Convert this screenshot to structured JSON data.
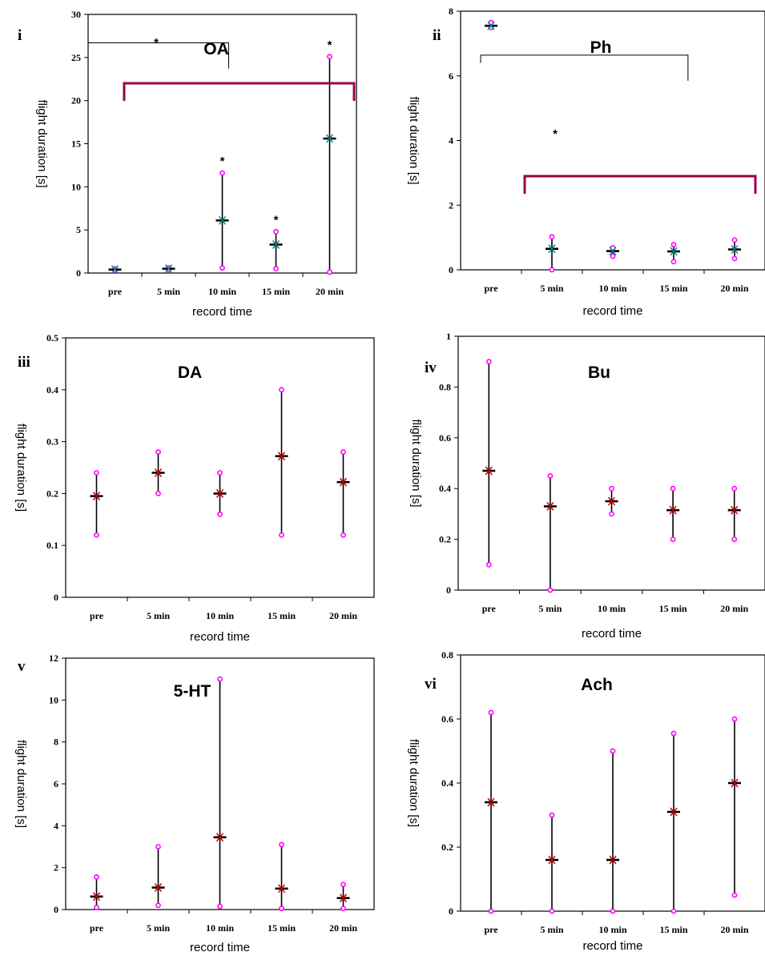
{
  "chart_data": [
    {
      "type": "scatter",
      "panel_label": "i",
      "title": "OA",
      "xlabel": "record time",
      "ylabel": "flight duration [s]",
      "categories": [
        "pre",
        "5 min",
        "10 min",
        "15 min",
        "20 min"
      ],
      "ylim": [
        0,
        30
      ],
      "yticks": [
        "0",
        "5",
        "10",
        "15",
        "20",
        "25",
        "30"
      ],
      "mean": [
        0.4,
        0.5,
        6.1,
        3.3,
        15.6
      ],
      "max": [
        0.5,
        0.6,
        11.6,
        4.8,
        25.1
      ],
      "min": [
        0.3,
        0.4,
        0.6,
        0.5,
        0.1
      ],
      "significance": [
        "",
        "",
        "*",
        "*",
        "*"
      ],
      "bracket_label": "*",
      "mean_color": "#008b8b",
      "point_color": "#ff00ff",
      "bracket_color": "#990044"
    },
    {
      "type": "scatter",
      "panel_label": "ii",
      "title": "Ph",
      "xlabel": "record time",
      "ylabel": "flight duration [s]",
      "categories": [
        "pre",
        "5 min",
        "10 min",
        "15 min",
        "20 min"
      ],
      "ylim": [
        0,
        8
      ],
      "yticks": [
        "0",
        "2",
        "4",
        "6",
        "8"
      ],
      "mean": [
        7.55,
        0.65,
        0.58,
        0.57,
        0.63
      ],
      "max": [
        7.65,
        1.02,
        0.68,
        0.78,
        0.92
      ],
      "min": [
        7.5,
        0.0,
        0.42,
        0.25,
        0.35
      ],
      "significance": [
        "",
        "",
        "",
        "",
        ""
      ],
      "bracket_label": "*",
      "mean_color": "#008b8b",
      "point_color": "#ff00ff",
      "bracket_color": "#990044"
    },
    {
      "type": "scatter",
      "panel_label": "iii",
      "title": "DA",
      "xlabel": "record time",
      "ylabel": "flight duration [s]",
      "categories": [
        "pre",
        "5 min",
        "10 min",
        "15 min",
        "20 min"
      ],
      "ylim": [
        0,
        0.5
      ],
      "yticks": [
        "0",
        "0.1",
        "0.2",
        "0.3",
        "0.4",
        "0.5"
      ],
      "mean": [
        0.195,
        0.24,
        0.2,
        0.272,
        0.222
      ],
      "max": [
        0.24,
        0.28,
        0.24,
        0.4,
        0.28
      ],
      "min": [
        0.12,
        0.2,
        0.16,
        0.12,
        0.12
      ],
      "significance": [
        "",
        "",
        "",
        "",
        ""
      ],
      "bracket_label": "",
      "mean_color": "#cc0000",
      "point_color": "#ff00ff",
      "bracket_color": "#990044"
    },
    {
      "type": "scatter",
      "panel_label": "iv",
      "title": "Bu",
      "xlabel": "record time",
      "ylabel": "flight duration [s]",
      "categories": [
        "pre",
        "5 min",
        "10 min",
        "15 min",
        "20 min"
      ],
      "ylim": [
        0,
        1
      ],
      "yticks": [
        "0",
        "0.2",
        "0.4",
        "0.6",
        "0.8",
        "1"
      ],
      "mean": [
        0.47,
        0.33,
        0.35,
        0.315,
        0.315
      ],
      "max": [
        0.9,
        0.45,
        0.4,
        0.4,
        0.4
      ],
      "min": [
        0.1,
        0.0,
        0.3,
        0.2,
        0.2
      ],
      "significance": [
        "",
        "",
        "",
        "",
        ""
      ],
      "bracket_label": "",
      "mean_color": "#cc0000",
      "point_color": "#ff00ff",
      "bracket_color": "#990044"
    },
    {
      "type": "scatter",
      "panel_label": "v",
      "title": "5-HT",
      "xlabel": "record time",
      "ylabel": "flight duration [s]",
      "categories": [
        "pre",
        "5 min",
        "10 min",
        "15 min",
        "20 min"
      ],
      "ylim": [
        0,
        12
      ],
      "yticks": [
        "0",
        "2",
        "4",
        "6",
        "8",
        "10",
        "12"
      ],
      "mean": [
        0.62,
        1.05,
        3.45,
        1.0,
        0.55
      ],
      "max": [
        1.55,
        3.0,
        11.0,
        3.1,
        1.2
      ],
      "min": [
        0.1,
        0.2,
        0.15,
        0.05,
        0.05
      ],
      "significance": [
        "",
        "",
        "",
        "",
        ""
      ],
      "bracket_label": "",
      "mean_color": "#cc0000",
      "point_color": "#ff00ff",
      "bracket_color": "#990044"
    },
    {
      "type": "scatter",
      "panel_label": "vi",
      "title": "Ach",
      "xlabel": "record time",
      "ylabel": "flight duration [s]",
      "categories": [
        "pre",
        "5 min",
        "10 min",
        "15 min",
        "20 min"
      ],
      "ylim": [
        0,
        0.8
      ],
      "yticks": [
        "0",
        "0.2",
        "0.4",
        "0.6",
        "0.8"
      ],
      "mean": [
        0.34,
        0.16,
        0.16,
        0.31,
        0.4
      ],
      "max": [
        0.62,
        0.3,
        0.5,
        0.555,
        0.6
      ],
      "min": [
        0.0,
        0.0,
        0.0,
        0.0,
        0.05
      ],
      "significance": [
        "",
        "",
        "",
        "",
        ""
      ],
      "bracket_label": "",
      "mean_color": "#cc0000",
      "point_color": "#ff00ff",
      "bracket_color": "#990044"
    }
  ]
}
